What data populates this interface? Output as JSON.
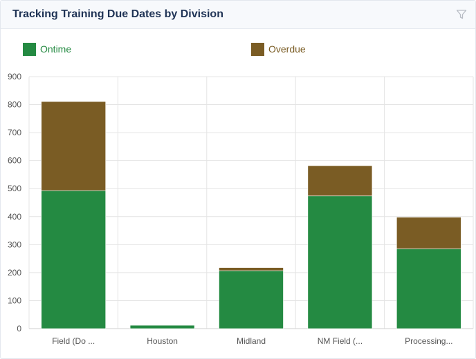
{
  "header": {
    "title": "Tracking Training Due Dates by Division",
    "filter_icon": "filter-icon"
  },
  "colors": {
    "ontime": "#248a42",
    "overdue": "#7a5c24",
    "grid": "#e4e4e4"
  },
  "chart_data": {
    "type": "bar",
    "stacked": true,
    "title": "Tracking Training Due Dates by Division",
    "categories": [
      "Field (Do ...",
      "Houston",
      "Midland",
      "NM Field (...",
      "Processing..."
    ],
    "series": [
      {
        "name": "Ontime",
        "values": [
          493,
          12,
          207,
          474,
          285
        ]
      },
      {
        "name": "Overdue",
        "values": [
          318,
          0,
          11,
          108,
          113
        ]
      }
    ],
    "yticks": [
      0,
      100,
      200,
      300,
      400,
      500,
      600,
      700,
      800,
      900
    ],
    "ylim": [
      0,
      900
    ],
    "xlabel": "",
    "ylabel": "",
    "legend_position": "top"
  }
}
